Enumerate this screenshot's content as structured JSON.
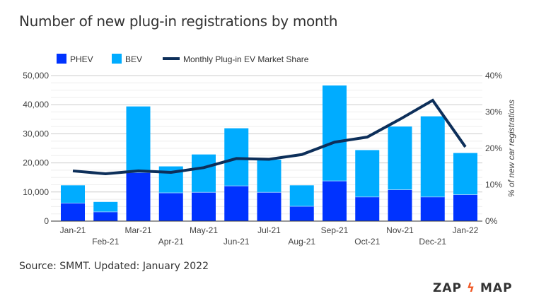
{
  "chart_data": {
    "type": "bar",
    "stacked": true,
    "title": "Number of new plug-in registrations by month",
    "categories": [
      "Jan-21",
      "Feb-21",
      "Mar-21",
      "Apr-21",
      "May-21",
      "Jun-21",
      "Jul-21",
      "Aug-21",
      "Sep-21",
      "Oct-21",
      "Nov-21",
      "Dec-21",
      "Jan-22"
    ],
    "series": [
      {
        "name": "PHEV",
        "color": "#0033ff",
        "values": [
          6200,
          3200,
          16700,
          9700,
          9900,
          12100,
          9900,
          5100,
          13800,
          8300,
          10800,
          8300,
          9100
        ]
      },
      {
        "name": "BEV",
        "color": "#00acff",
        "values": [
          6100,
          3400,
          22700,
          9100,
          13000,
          19800,
          11200,
          7200,
          32800,
          16100,
          21700,
          27700,
          14300
        ]
      },
      {
        "name": "Monthly Plug-in EV Market Share",
        "type": "line",
        "axis": "right",
        "color": "#0d2f5a",
        "values": [
          13.8,
          13.0,
          13.8,
          13.4,
          14.7,
          17.2,
          17.0,
          18.3,
          21.7,
          23.1,
          28.0,
          33.2,
          20.4
        ]
      }
    ],
    "ylim": [
      0,
      50000
    ],
    "yticks": [
      "0",
      "10,000",
      "20,000",
      "30,000",
      "40,000",
      "50,000"
    ],
    "y2lim": [
      0,
      40
    ],
    "y2ticks": [
      "0%",
      "10%",
      "20%",
      "30%",
      "40%"
    ],
    "y2label": "% of new car registrations",
    "xlabel": "",
    "ylabel": "",
    "grid": true,
    "legend": "top-left"
  },
  "source": "Source: SMMT. Updated: January 2022",
  "logo": {
    "left": "ZAP",
    "right": "MAP"
  }
}
